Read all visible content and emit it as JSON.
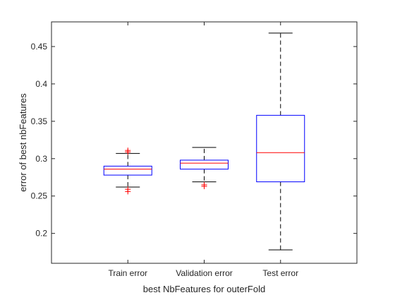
{
  "chart_data": {
    "type": "boxplot",
    "title": "",
    "xlabel": "best NbFeatures for outerFold",
    "ylabel": "error of best nbFeatures",
    "ylim": [
      0.16,
      0.483
    ],
    "yticks": [
      0.2,
      0.25,
      0.3,
      0.35,
      0.4,
      0.45
    ],
    "ytick_labels": [
      "0.2",
      "0.25",
      "0.3",
      "0.35",
      "0.4",
      "0.45"
    ],
    "grid": false,
    "categories": [
      "Train error",
      "Validation error",
      "Test error"
    ],
    "boxes": [
      {
        "category": "Train error",
        "whisker_low": 0.262,
        "q1": 0.278,
        "median": 0.286,
        "q3": 0.29,
        "whisker_high": 0.307,
        "outliers": [
          0.311,
          0.309,
          0.259,
          0.256
        ]
      },
      {
        "category": "Validation error",
        "whisker_low": 0.269,
        "q1": 0.286,
        "median": 0.294,
        "q3": 0.298,
        "whisker_high": 0.315,
        "outliers": [
          0.265,
          0.263
        ]
      },
      {
        "category": "Test error",
        "whisker_low": 0.178,
        "q1": 0.269,
        "median": 0.308,
        "q3": 0.358,
        "whisker_high": 0.468,
        "outliers": []
      }
    ],
    "colors": {
      "box": "#0000ff",
      "median": "#ff0000",
      "whisker": "#000000",
      "outlier": "#ff0000",
      "axis": "#262626"
    }
  }
}
